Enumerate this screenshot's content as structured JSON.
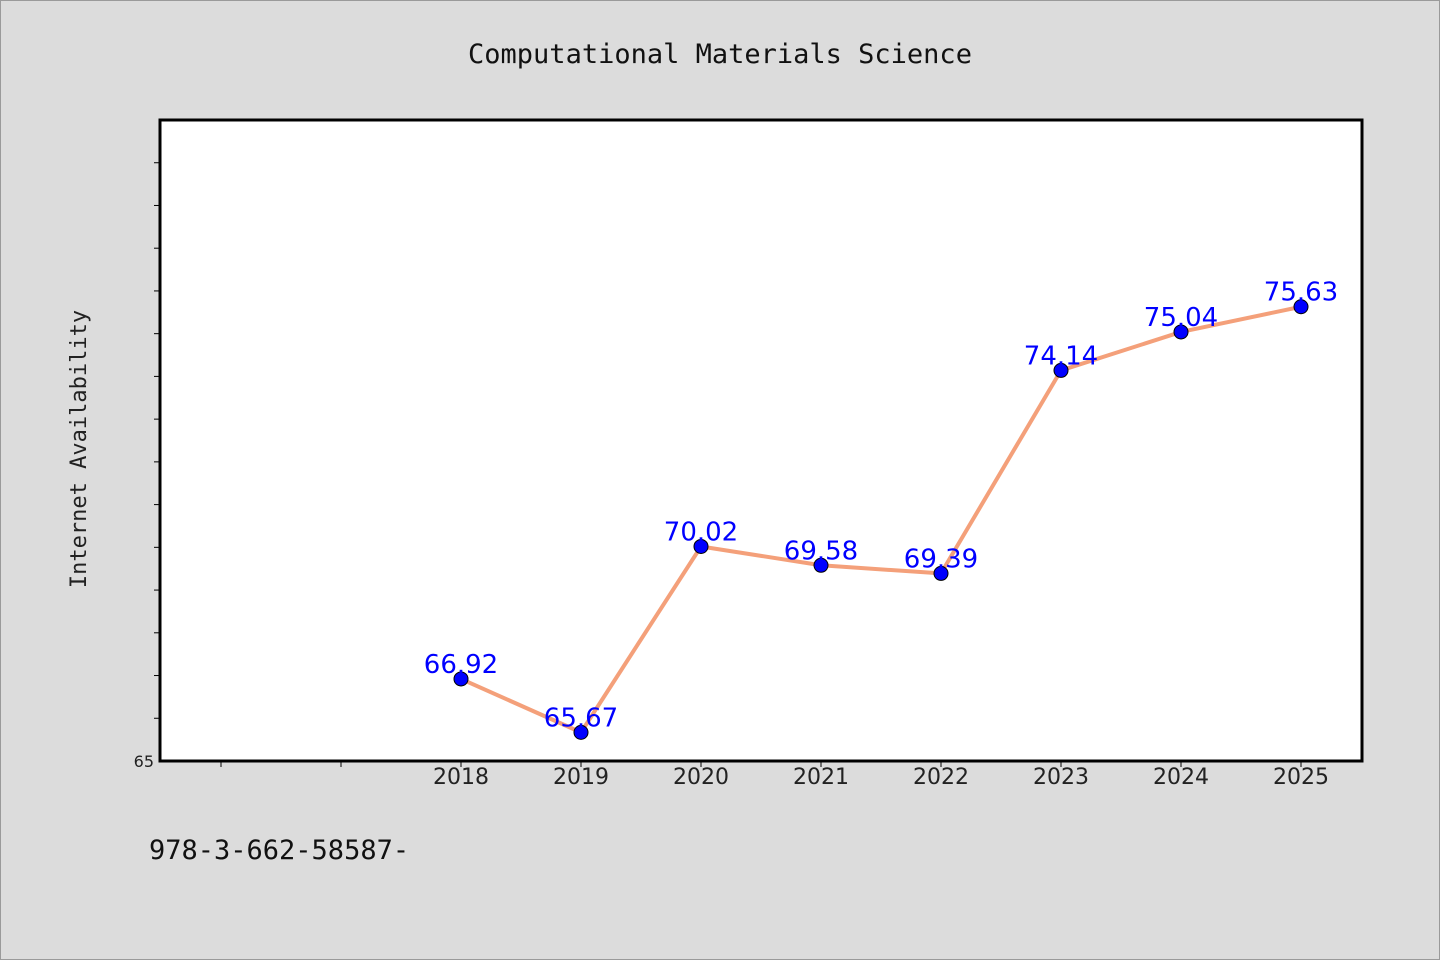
{
  "chart_data": {
    "type": "line",
    "title": "Computational Materials Science",
    "xlabel": "",
    "ylabel": "Internet Availability",
    "categories": [
      "2018",
      "2019",
      "2020",
      "2021",
      "2022",
      "2023",
      "2024",
      "2025"
    ],
    "series": [
      {
        "values": [
          66.92,
          65.67,
          70.02,
          69.58,
          69.39,
          74.14,
          75.04,
          75.63
        ],
        "labels": [
          "66.92",
          "65.67",
          "70.02",
          "69.58",
          "69.39",
          "74.14",
          "75.04",
          "75.63"
        ],
        "line_color": "#f4a07a",
        "marker_color": "#0000ff"
      }
    ],
    "ylim": [
      65,
      80
    ],
    "y_tick_labels": [
      "65"
    ],
    "grid": false,
    "legend": "none"
  },
  "footer": {
    "text": "978-3-662-58587-"
  }
}
